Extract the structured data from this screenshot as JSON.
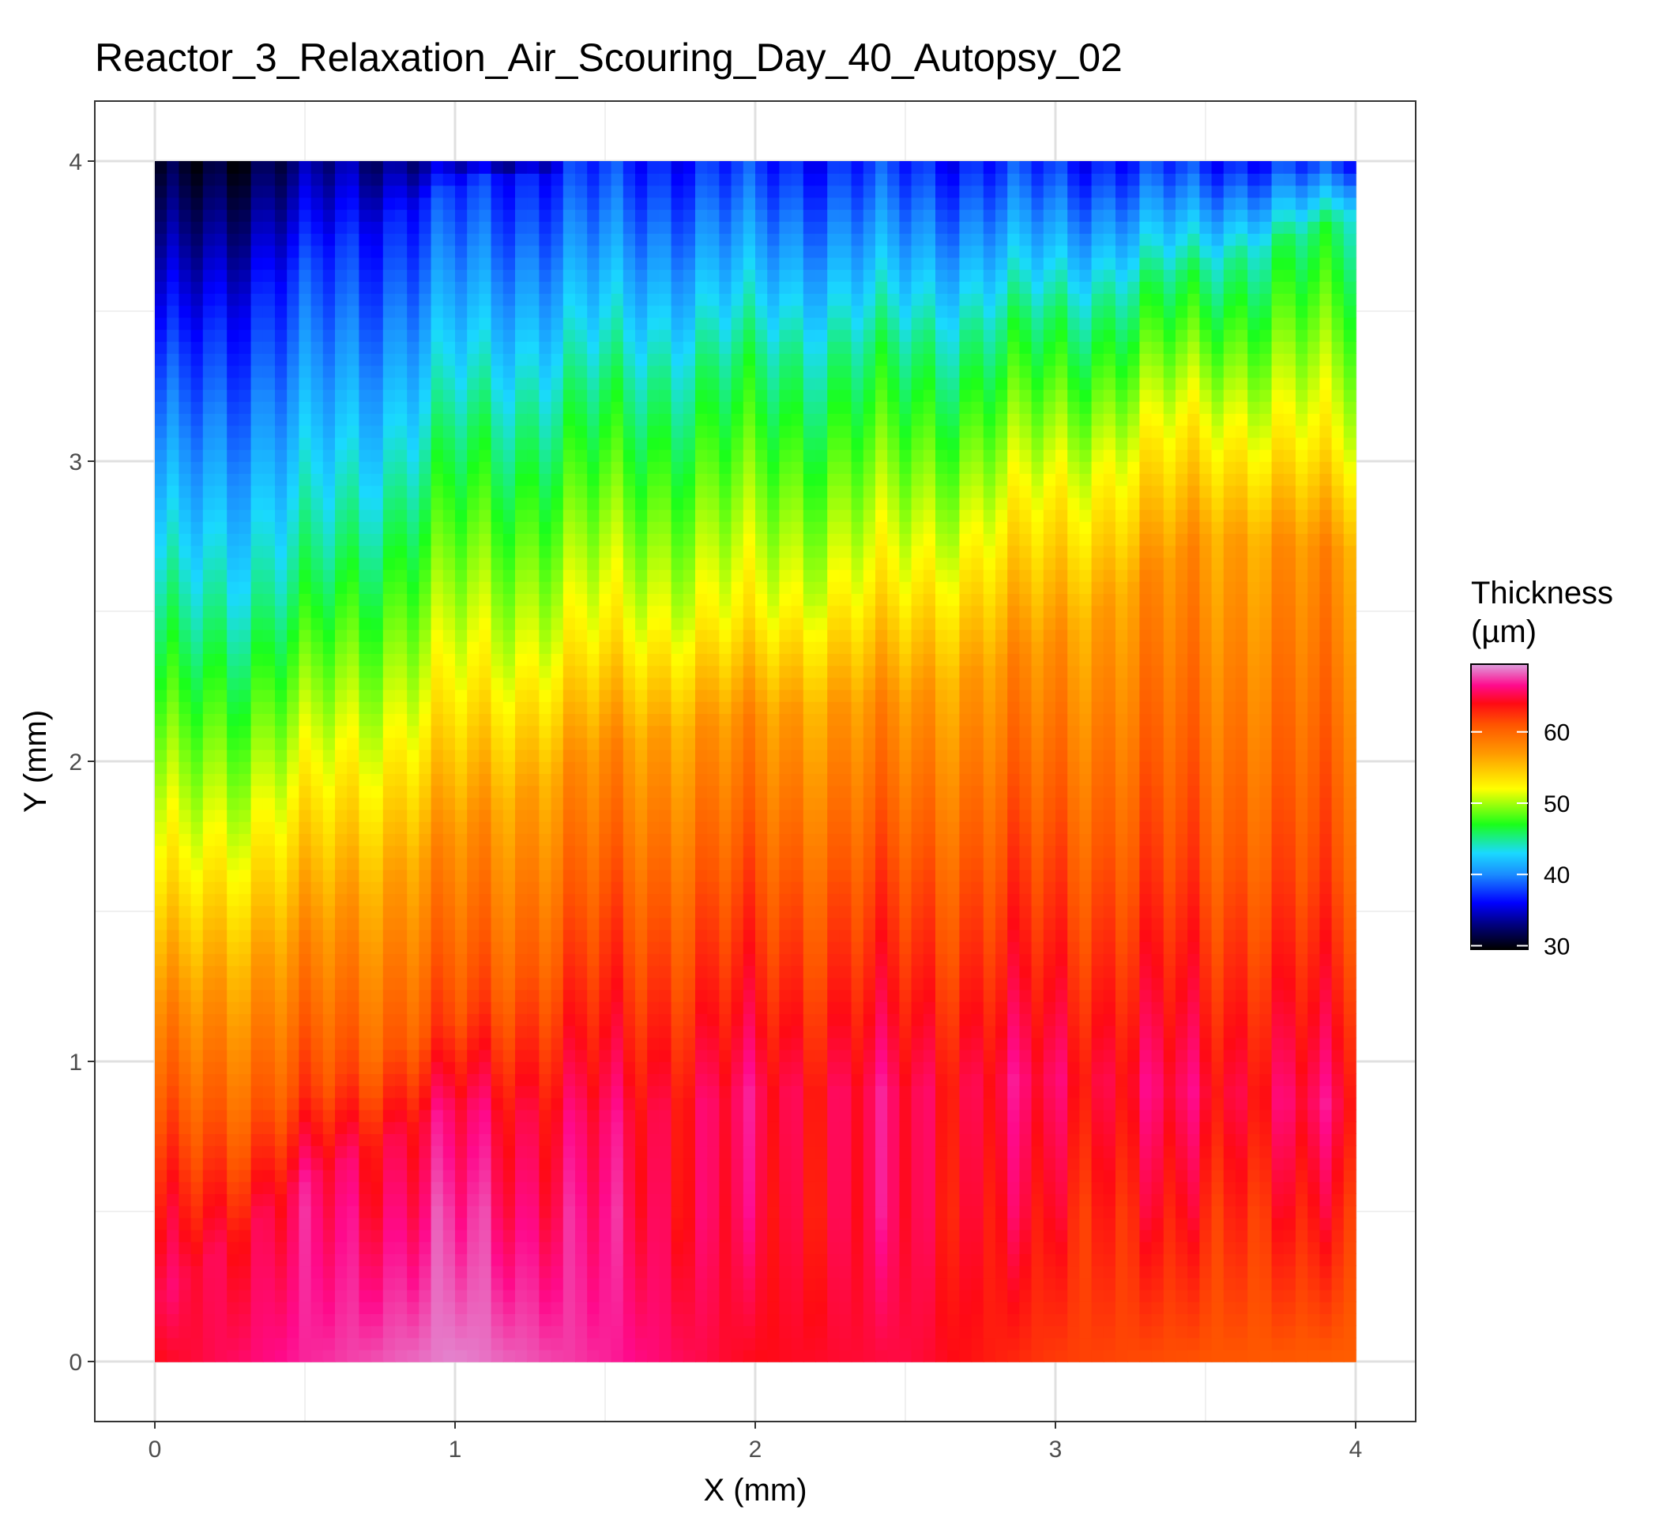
{
  "chart_data": {
    "type": "heatmap",
    "title": "Reactor_3_Relaxation_Air_Scouring_Day_40_Autopsy_02",
    "xlabel": "X (mm)",
    "ylabel": "Y (mm)",
    "xlim": [
      -0.2,
      4.2
    ],
    "ylim": [
      -0.2,
      4.2
    ],
    "x_ticks": [
      0,
      1,
      2,
      3,
      4
    ],
    "y_ticks": [
      0,
      1,
      2,
      3,
      4
    ],
    "x_tick_labels": [
      "0",
      "1",
      "2",
      "3",
      "4"
    ],
    "y_tick_labels": [
      "0",
      "1",
      "2",
      "3",
      "4"
    ],
    "grid": true,
    "legend": {
      "title_line1": "Thickness",
      "title_line2": "(µm)",
      "placement": "right",
      "range": [
        29.5,
        69.5
      ],
      "ticks": [
        30,
        40,
        50,
        60
      ],
      "tick_labels": [
        "30",
        "40",
        "50",
        "60"
      ]
    },
    "colorscale": [
      [
        29.5,
        "#000000"
      ],
      [
        33,
        "#000080"
      ],
      [
        36,
        "#0000ff"
      ],
      [
        40,
        "#1a8cff"
      ],
      [
        43,
        "#1ad9ff"
      ],
      [
        47,
        "#1aff1a"
      ],
      [
        52,
        "#ffff00"
      ],
      [
        57,
        "#ff9900"
      ],
      [
        61,
        "#ff5500"
      ],
      [
        64,
        "#ff0a14"
      ],
      [
        66.5,
        "#ff0a8c"
      ],
      [
        69.5,
        "#dda0dd"
      ]
    ],
    "surface": {
      "x_samples": [
        0,
        0.5,
        1,
        1.5,
        2,
        2.5,
        3,
        3.5,
        4
      ],
      "iso_contours": [
        {
          "value": 37,
          "y_at_x": [
            3.3,
            3.65,
            3.92,
            4.0,
            4.0,
            4.0,
            4.0,
            4.0,
            4.0
          ]
        },
        {
          "value": 45,
          "y_at_x": [
            2.4,
            2.6,
            3.1,
            3.25,
            3.35,
            3.38,
            3.5,
            3.65,
            3.82
          ]
        },
        {
          "value": 52,
          "y_at_x": [
            1.6,
            1.9,
            2.25,
            2.45,
            2.5,
            2.62,
            2.9,
            3.15,
            3.05
          ]
        },
        {
          "value": 57,
          "y_at_x": [
            1.15,
            1.4,
            1.75,
            2.05,
            2.15,
            2.2,
            2.4,
            2.75,
            2.7
          ]
        },
        {
          "value": 61,
          "y_at_x": [
            0.7,
            0.9,
            1.15,
            1.45,
            1.55,
            1.6,
            1.7,
            1.7,
            1.6
          ]
        },
        {
          "value": 65,
          "y_at_x": [
            0.2,
            0.6,
            0.85,
            0.8,
            0.9,
            0.9,
            0.95,
            0.9,
            0.85
          ]
        }
      ],
      "value_at_y0": [
        64,
        67,
        69,
        67,
        64,
        65,
        62,
        61,
        60.5
      ]
    }
  }
}
